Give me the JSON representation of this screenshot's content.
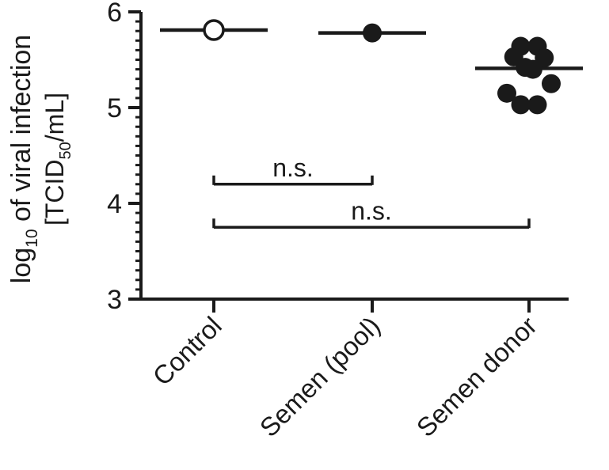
{
  "chart_data": {
    "type": "scatter",
    "ylabel_prefix": "log",
    "ylabel_log_sub": "10",
    "ylabel_rest": " of viral infection",
    "ylabel2_prefix": "[TCID",
    "ylabel2_sub": "50",
    "ylabel2_rest": "/mL]",
    "ylim": [
      3,
      6
    ],
    "yticks": [
      "3",
      "4",
      "5",
      "6"
    ],
    "ytick_values": [
      3,
      4,
      5,
      6
    ],
    "y_minor_step": 0.1,
    "categories": [
      "Control",
      "Semen (pool)",
      "Semen donor"
    ],
    "groups": [
      {
        "category": "Control",
        "marker": "open",
        "points": [
          {
            "x": 0,
            "y": 5.81
          }
        ],
        "mean": 5.81
      },
      {
        "category": "Semen (pool)",
        "marker": "filled",
        "points": [
          {
            "x": 0,
            "y": 5.78
          }
        ],
        "mean": 5.78
      },
      {
        "category": "Semen donor",
        "marker": "filled",
        "mean": 5.41,
        "points": [
          {
            "x": -0.3,
            "y": 5.64
          },
          {
            "x": 0.3,
            "y": 5.64
          },
          {
            "x": -0.55,
            "y": 5.53
          },
          {
            "x": 0.55,
            "y": 5.52
          },
          {
            "x": -0.14,
            "y": 5.42
          },
          {
            "x": 0.14,
            "y": 5.4
          },
          {
            "x": -0.8,
            "y": 5.15
          },
          {
            "x": 0.8,
            "y": 5.25
          },
          {
            "x": -0.3,
            "y": 5.03
          },
          {
            "x": 0.3,
            "y": 5.03
          }
        ]
      }
    ],
    "significance": [
      {
        "from": 0,
        "to": 1,
        "y": 4.2,
        "label": "n.s."
      },
      {
        "from": 0,
        "to": 2,
        "y": 3.75,
        "label": "n.s."
      }
    ],
    "grid": false,
    "legend": "none"
  }
}
